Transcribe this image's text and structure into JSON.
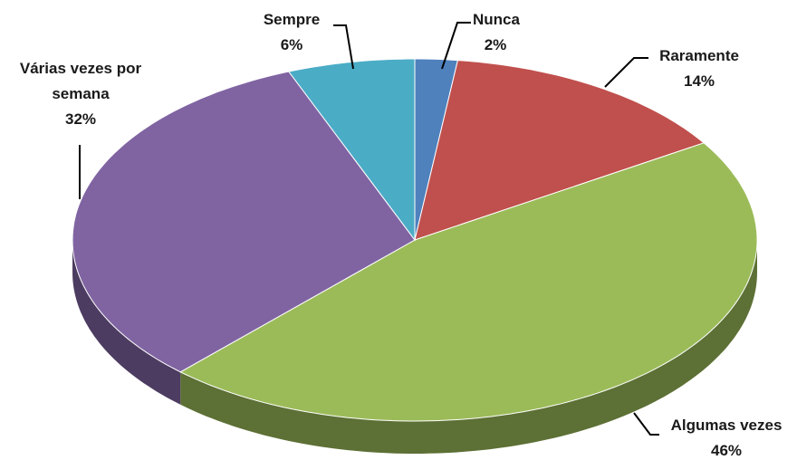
{
  "chart_data": {
    "type": "pie",
    "categories": [
      "Nunca",
      "Raramente",
      "Algumas vezes",
      "Várias vezes por semana",
      "Sempre"
    ],
    "values": [
      2,
      14,
      46,
      32,
      6
    ],
    "value_labels": [
      "2%",
      "14%",
      "46%",
      "32%",
      "6%"
    ],
    "colors": [
      "#4f81bd",
      "#c0504d",
      "#9bbb59",
      "#8064a2",
      "#4bacc6"
    ]
  }
}
